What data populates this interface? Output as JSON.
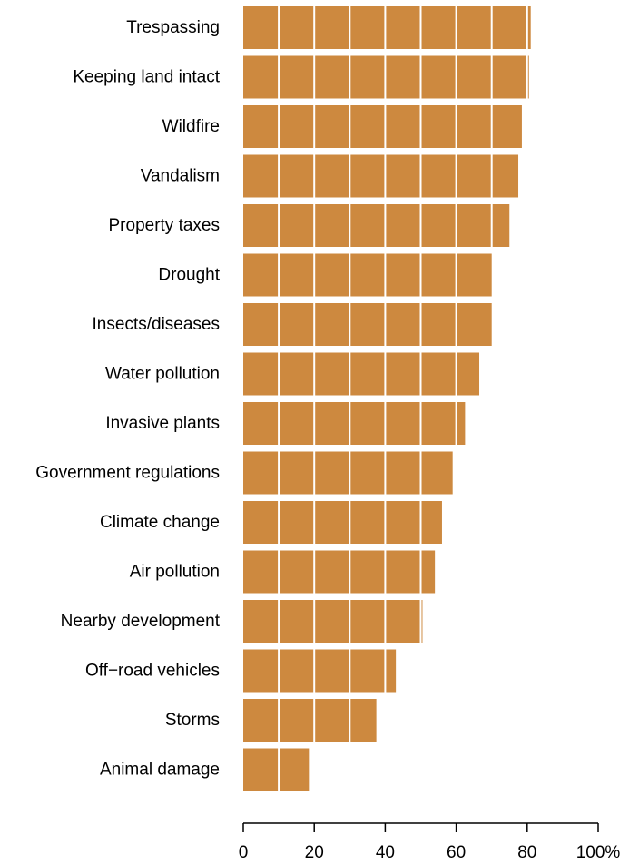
{
  "chart_data": {
    "type": "bar",
    "orientation": "horizontal",
    "title": "",
    "xlabel": "",
    "ylabel": "",
    "categories": [
      "Trespassing",
      "Keeping land intact",
      "Wildfire",
      "Vandalism",
      "Property taxes",
      "Drought",
      "Insects/diseases",
      "Water pollution",
      "Invasive plants",
      "Government regulations",
      "Climate change",
      "Air pollution",
      "Nearby development",
      "Off−road vehicles",
      "Storms",
      "Animal damage"
    ],
    "values": [
      81,
      80.5,
      78.5,
      77.5,
      75,
      70,
      70,
      66.5,
      62.5,
      59,
      56,
      54,
      50.5,
      43,
      37.5,
      18.5
    ],
    "xlim": [
      0,
      100
    ],
    "x_ticks": [
      0,
      20,
      40,
      60,
      80,
      100
    ],
    "x_tick_labels": [
      "0",
      "20",
      "40",
      "60",
      "80",
      "100%"
    ],
    "bar_color": "#CD893F",
    "gridlines": {
      "orientation": "vertical",
      "every": 10,
      "color": "#ffffff"
    },
    "legend": "none"
  }
}
